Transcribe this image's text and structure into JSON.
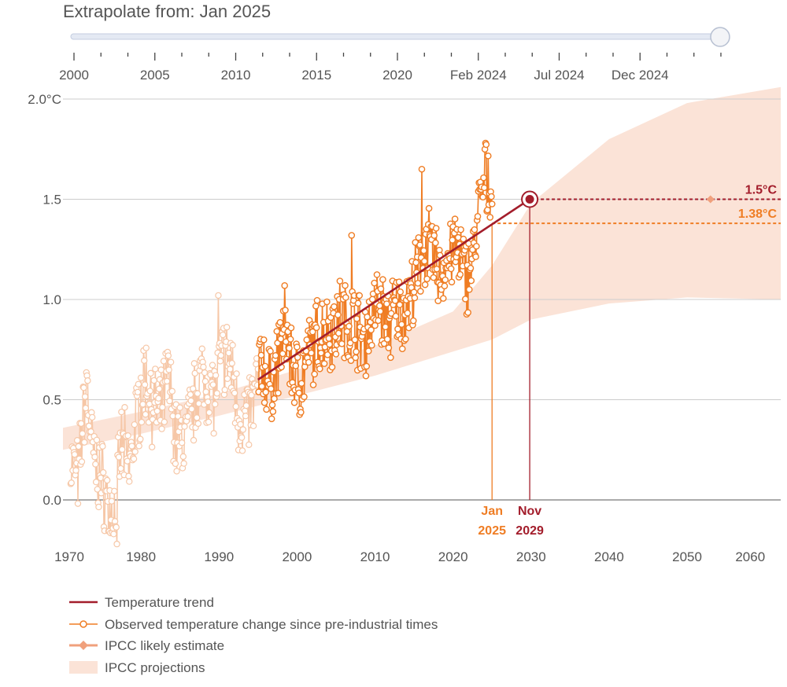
{
  "slider": {
    "title": "Extrapolate from: Jan 2025",
    "value": "Jan 2025",
    "ticks": [
      "2000",
      "2005",
      "2010",
      "2015",
      "2020",
      "Feb 2024",
      "Jul 2024",
      "Dec 2024"
    ]
  },
  "colors": {
    "trend": "#a31d2b",
    "observed": "#ef7d24",
    "observed_faded": "#f6c7a7",
    "ipcc_band": "#fbe3d7",
    "ipcc_estimate": "#f0a07c",
    "grid": "#cccccc"
  },
  "chart_data": {
    "type": "line",
    "title": "Extrapolate from: Jan 2025",
    "y_ticks": [
      "2.0°C",
      "1.5",
      "1.0",
      "0.5",
      "0.0"
    ],
    "y_tick_values": [
      2.0,
      1.5,
      1.0,
      0.5,
      0.0
    ],
    "x_ticks": [
      "1970",
      "1980",
      "1990",
      "2000",
      "2010",
      "2020",
      "2030",
      "2040",
      "2050",
      "2060"
    ],
    "x_tick_values": [
      1970,
      1980,
      1990,
      2000,
      2010,
      2020,
      2030,
      2040,
      2050,
      2060
    ],
    "xlim": [
      1970,
      2062
    ],
    "ylim": [
      -0.25,
      2.0
    ],
    "trend": {
      "x_start": 1995,
      "y_start": 0.6,
      "x_end": 2029.83,
      "y_end": 1.5
    },
    "threshold_15": {
      "value": 1.5,
      "label": "1.5°C",
      "x_from": 2029.83
    },
    "current_level": {
      "value": 1.38,
      "label": "1.38°C",
      "x_from": 2025.0
    },
    "ipcc_likely_estimate": {
      "x": 2053,
      "y": 1.5
    },
    "ipcc_band": {
      "x": [
        1970,
        1980,
        1990,
        2000,
        2010,
        2020,
        2025,
        2030,
        2040,
        2050,
        2062
      ],
      "lower": [
        0.25,
        0.33,
        0.42,
        0.52,
        0.62,
        0.74,
        0.8,
        0.9,
        0.98,
        1.01,
        1.0
      ],
      "upper": [
        0.36,
        0.44,
        0.53,
        0.65,
        0.77,
        0.94,
        1.17,
        1.48,
        1.8,
        1.98,
        2.06
      ]
    },
    "markers": [
      {
        "month": "Jan",
        "year": "2025",
        "x": 2025.0
      },
      {
        "month": "Nov",
        "year": "2029",
        "x": 2029.83
      }
    ],
    "observed_faded_years": [
      1971,
      1995
    ],
    "observed_highlight_years": [
      1995,
      2025
    ],
    "observed_keypoints": [
      [
        1971.0,
        0.2
      ],
      [
        1972.0,
        0.1
      ],
      [
        1972.5,
        0.38
      ],
      [
        1973.0,
        0.55
      ],
      [
        1974.0,
        0.18
      ],
      [
        1975.0,
        0.1
      ],
      [
        1976.0,
        -0.05
      ],
      [
        1976.8,
        -0.05
      ],
      [
        1977.5,
        0.3
      ],
      [
        1978.5,
        0.15
      ],
      [
        1979.5,
        0.42
      ],
      [
        1980.5,
        0.62
      ],
      [
        1981.5,
        0.48
      ],
      [
        1982.5,
        0.42
      ],
      [
        1983.5,
        0.62
      ],
      [
        1984.5,
        0.3
      ],
      [
        1985.5,
        0.3
      ],
      [
        1986.5,
        0.42
      ],
      [
        1987.5,
        0.62
      ],
      [
        1988.5,
        0.58
      ],
      [
        1989.5,
        0.52
      ],
      [
        1990.5,
        0.72
      ],
      [
        1991.5,
        0.68
      ],
      [
        1992.5,
        0.42
      ],
      [
        1993.5,
        0.4
      ],
      [
        1994.5,
        0.5
      ],
      [
        1995.5,
        0.7
      ],
      [
        1996.5,
        0.55
      ],
      [
        1997.5,
        0.68
      ],
      [
        1998.5,
        0.88
      ],
      [
        1999.5,
        0.62
      ],
      [
        2000.5,
        0.6
      ],
      [
        2001.5,
        0.72
      ],
      [
        2002.5,
        0.8
      ],
      [
        2003.5,
        0.85
      ],
      [
        2004.5,
        0.85
      ],
      [
        2005.5,
        0.92
      ],
      [
        2006.5,
        0.88
      ],
      [
        2007.5,
        0.9
      ],
      [
        2008.5,
        0.78
      ],
      [
        2009.5,
        0.9
      ],
      [
        2010.5,
        0.98
      ],
      [
        2011.5,
        0.88
      ],
      [
        2012.5,
        0.92
      ],
      [
        2013.5,
        0.95
      ],
      [
        2014.5,
        1.0
      ],
      [
        2015.5,
        1.12
      ],
      [
        2016.5,
        1.28
      ],
      [
        2017.5,
        1.2
      ],
      [
        2018.5,
        1.12
      ],
      [
        2019.5,
        1.22
      ],
      [
        2020.5,
        1.25
      ],
      [
        2021.5,
        1.12
      ],
      [
        2022.5,
        1.18
      ],
      [
        2023.5,
        1.5
      ],
      [
        2024.5,
        1.6
      ],
      [
        2025.0,
        1.55
      ]
    ],
    "observed_spikes": [
      [
        1973.1,
        0.62
      ],
      [
        1976.9,
        -0.22
      ],
      [
        1989.9,
        1.02
      ],
      [
        2007.0,
        1.32
      ],
      [
        2016.0,
        1.65
      ],
      [
        2024.2,
        1.78
      ]
    ],
    "legend": [
      {
        "key": "trend",
        "label": "Temperature trend"
      },
      {
        "key": "observed",
        "label": "Observed temperature change since pre-industrial times"
      },
      {
        "key": "estimate",
        "label": "IPCC likely estimate"
      },
      {
        "key": "band",
        "label": "IPCC projections"
      }
    ]
  }
}
